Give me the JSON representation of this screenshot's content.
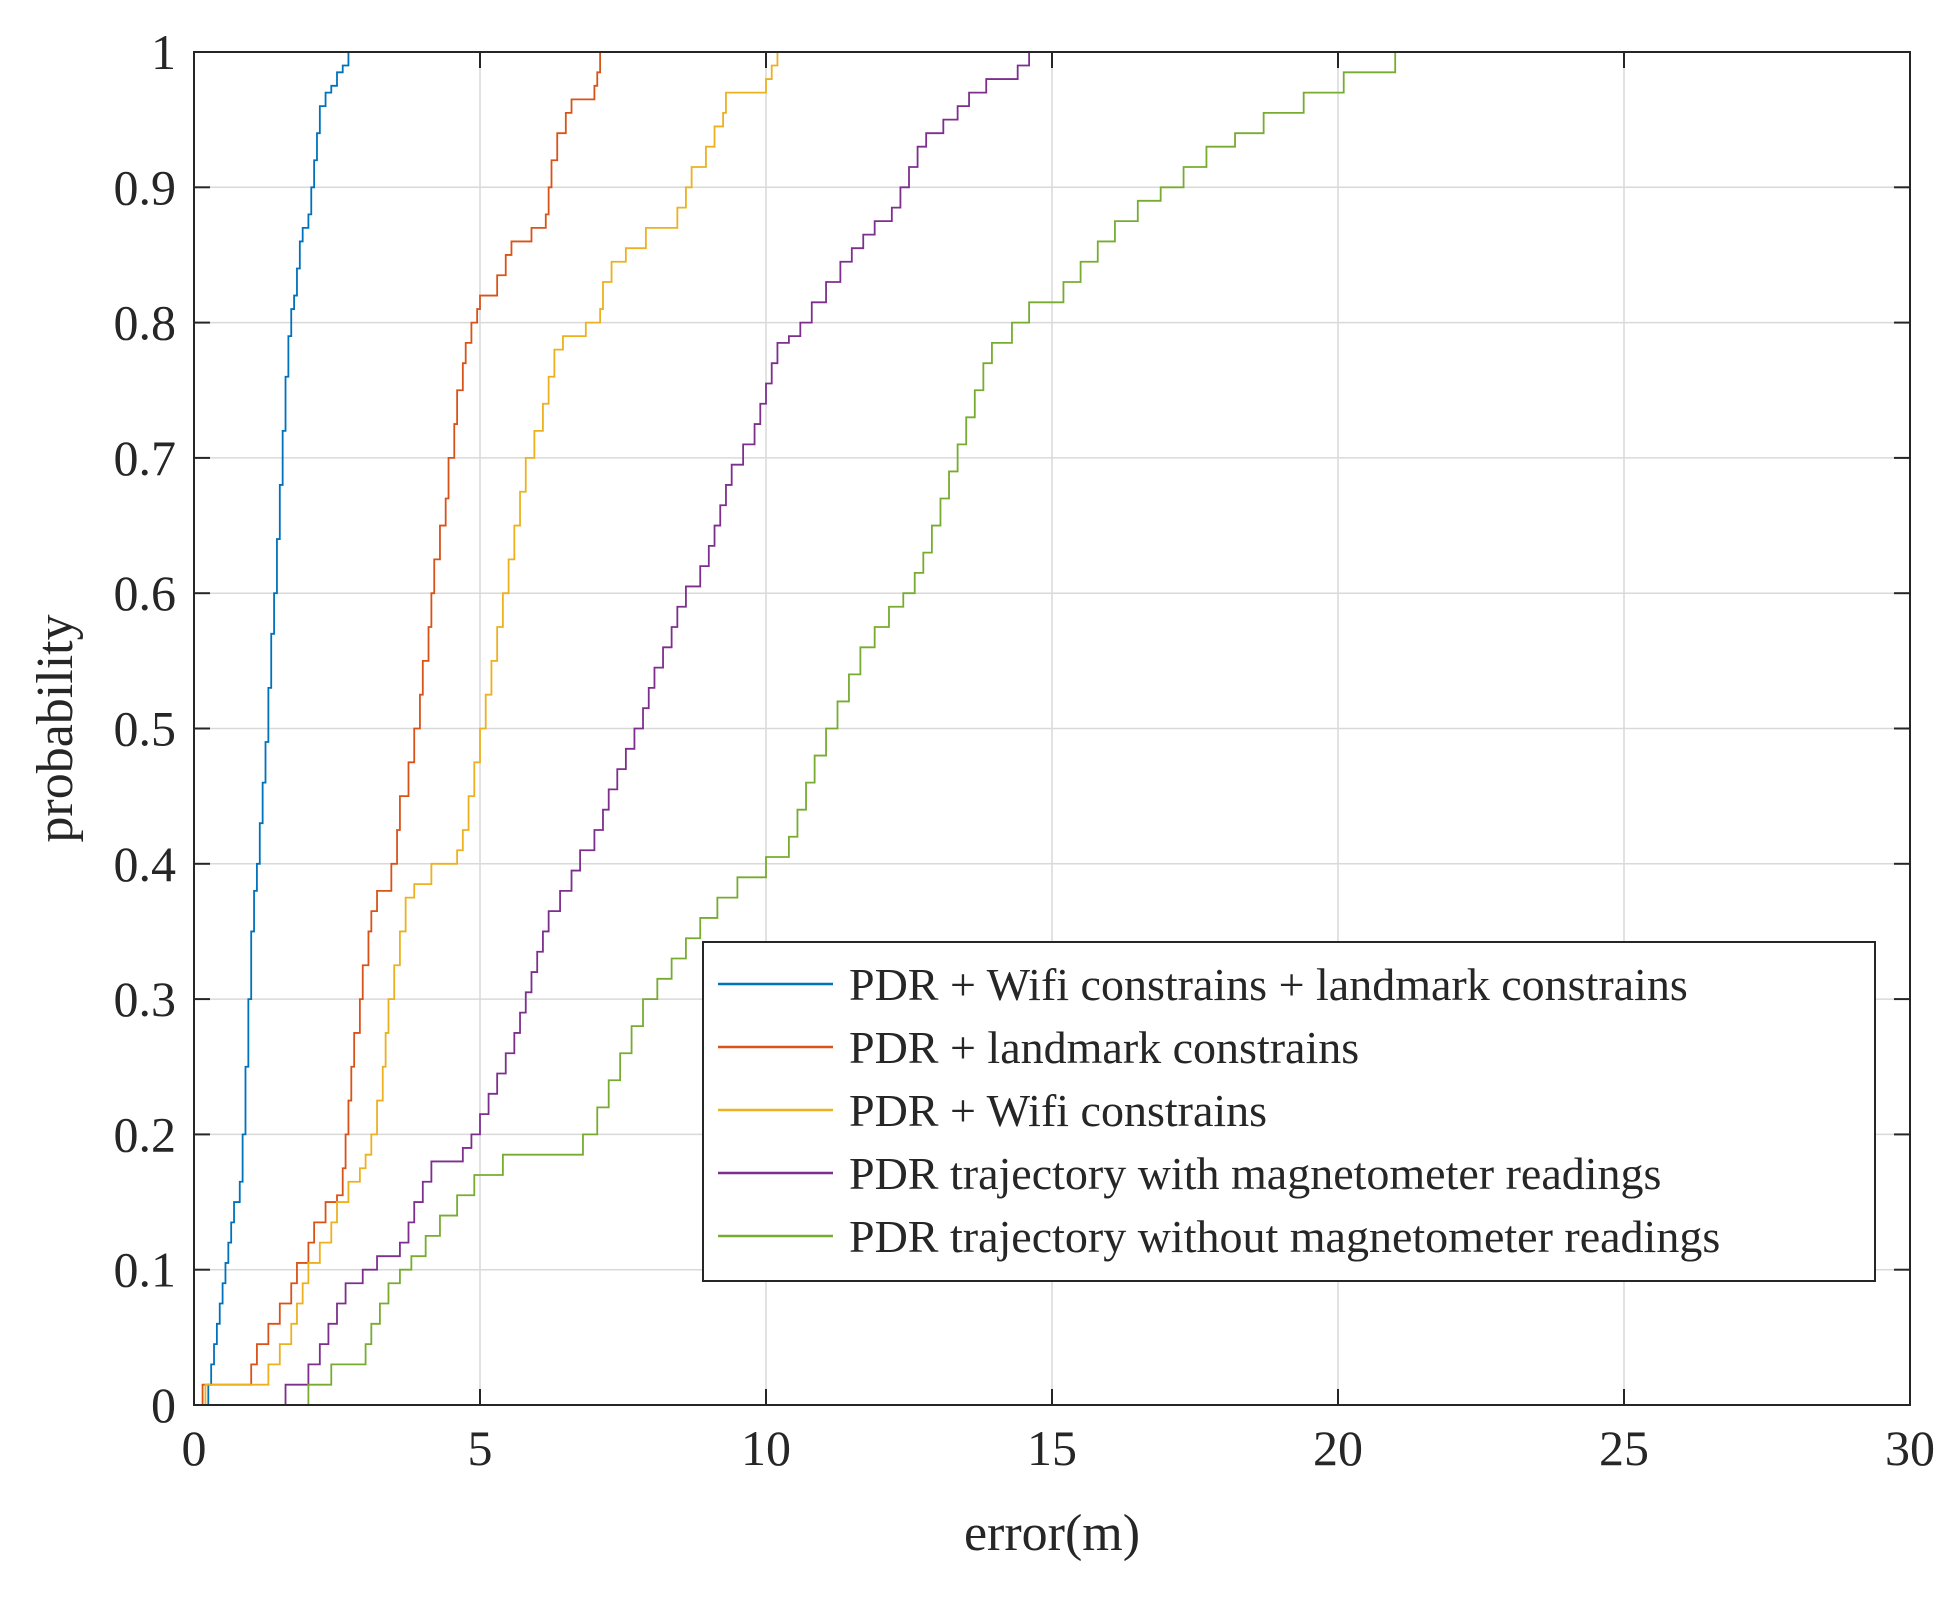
{
  "chart_data": {
    "type": "line",
    "subtype": "empirical-cdf-step",
    "title": "",
    "xlabel": "error(m)",
    "ylabel": "probability",
    "xlim": [
      0,
      30
    ],
    "ylim": [
      0,
      1
    ],
    "xticks": [
      0,
      5,
      10,
      15,
      20,
      25,
      30
    ],
    "yticks": [
      0,
      0.1,
      0.2,
      0.3,
      0.4,
      0.5,
      0.6,
      0.7,
      0.8,
      0.9,
      1
    ],
    "xtick_labels": [
      "0",
      "5",
      "10",
      "15",
      "20",
      "25",
      "30"
    ],
    "ytick_labels": [
      "0",
      "0.1",
      "0.2",
      "0.3",
      "0.4",
      "0.5",
      "0.6",
      "0.7",
      "0.8",
      "0.9",
      "1"
    ],
    "grid": true,
    "legend_position": "lower-right",
    "series": [
      {
        "name": "PDR + Wifi constrains + landmark constrains",
        "color": "#0072BD",
        "points": [
          [
            0.2,
            0
          ],
          [
            0.25,
            0.015
          ],
          [
            0.3,
            0.03
          ],
          [
            0.35,
            0.045
          ],
          [
            0.4,
            0.06
          ],
          [
            0.45,
            0.075
          ],
          [
            0.5,
            0.09
          ],
          [
            0.55,
            0.105
          ],
          [
            0.6,
            0.12
          ],
          [
            0.65,
            0.135
          ],
          [
            0.7,
            0.15
          ],
          [
            0.8,
            0.165
          ],
          [
            0.85,
            0.2
          ],
          [
            0.9,
            0.25
          ],
          [
            0.95,
            0.3
          ],
          [
            1.0,
            0.35
          ],
          [
            1.05,
            0.38
          ],
          [
            1.1,
            0.4
          ],
          [
            1.15,
            0.43
          ],
          [
            1.2,
            0.46
          ],
          [
            1.25,
            0.49
          ],
          [
            1.3,
            0.53
          ],
          [
            1.35,
            0.57
          ],
          [
            1.4,
            0.6
          ],
          [
            1.45,
            0.64
          ],
          [
            1.5,
            0.68
          ],
          [
            1.55,
            0.72
          ],
          [
            1.6,
            0.76
          ],
          [
            1.65,
            0.79
          ],
          [
            1.7,
            0.81
          ],
          [
            1.75,
            0.82
          ],
          [
            1.8,
            0.84
          ],
          [
            1.85,
            0.86
          ],
          [
            1.9,
            0.87
          ],
          [
            2.0,
            0.88
          ],
          [
            2.05,
            0.9
          ],
          [
            2.1,
            0.92
          ],
          [
            2.15,
            0.94
          ],
          [
            2.2,
            0.96
          ],
          [
            2.3,
            0.97
          ],
          [
            2.4,
            0.975
          ],
          [
            2.5,
            0.985
          ],
          [
            2.6,
            0.99
          ],
          [
            2.7,
            1.0
          ]
        ]
      },
      {
        "name": "PDR + landmark constrains",
        "color": "#D95319",
        "points": [
          [
            0.1,
            0
          ],
          [
            0.15,
            0.015
          ],
          [
            1.0,
            0.03
          ],
          [
            1.1,
            0.045
          ],
          [
            1.3,
            0.06
          ],
          [
            1.5,
            0.075
          ],
          [
            1.7,
            0.09
          ],
          [
            1.8,
            0.105
          ],
          [
            2.0,
            0.12
          ],
          [
            2.1,
            0.135
          ],
          [
            2.3,
            0.15
          ],
          [
            2.5,
            0.155
          ],
          [
            2.6,
            0.175
          ],
          [
            2.65,
            0.2
          ],
          [
            2.7,
            0.225
          ],
          [
            2.75,
            0.25
          ],
          [
            2.8,
            0.275
          ],
          [
            2.9,
            0.3
          ],
          [
            2.95,
            0.325
          ],
          [
            3.05,
            0.35
          ],
          [
            3.1,
            0.365
          ],
          [
            3.2,
            0.38
          ],
          [
            3.45,
            0.4
          ],
          [
            3.55,
            0.425
          ],
          [
            3.6,
            0.45
          ],
          [
            3.75,
            0.475
          ],
          [
            3.85,
            0.5
          ],
          [
            3.95,
            0.525
          ],
          [
            4.0,
            0.55
          ],
          [
            4.1,
            0.575
          ],
          [
            4.15,
            0.6
          ],
          [
            4.2,
            0.625
          ],
          [
            4.3,
            0.65
          ],
          [
            4.4,
            0.67
          ],
          [
            4.45,
            0.7
          ],
          [
            4.55,
            0.725
          ],
          [
            4.6,
            0.75
          ],
          [
            4.7,
            0.77
          ],
          [
            4.75,
            0.785
          ],
          [
            4.85,
            0.8
          ],
          [
            4.95,
            0.81
          ],
          [
            5.0,
            0.82
          ],
          [
            5.3,
            0.835
          ],
          [
            5.45,
            0.85
          ],
          [
            5.55,
            0.86
          ],
          [
            5.9,
            0.87
          ],
          [
            6.15,
            0.88
          ],
          [
            6.2,
            0.9
          ],
          [
            6.25,
            0.92
          ],
          [
            6.35,
            0.94
          ],
          [
            6.5,
            0.955
          ],
          [
            6.6,
            0.965
          ],
          [
            7.0,
            0.975
          ],
          [
            7.05,
            0.985
          ],
          [
            7.1,
            1.0
          ]
        ]
      },
      {
        "name": "PDR + Wifi constrains",
        "color": "#EDB120",
        "points": [
          [
            0.15,
            0
          ],
          [
            0.2,
            0.015
          ],
          [
            1.1,
            0.015
          ],
          [
            1.3,
            0.03
          ],
          [
            1.5,
            0.045
          ],
          [
            1.7,
            0.06
          ],
          [
            1.8,
            0.075
          ],
          [
            1.9,
            0.09
          ],
          [
            2.0,
            0.105
          ],
          [
            2.2,
            0.12
          ],
          [
            2.4,
            0.135
          ],
          [
            2.5,
            0.15
          ],
          [
            2.7,
            0.165
          ],
          [
            2.9,
            0.175
          ],
          [
            3.0,
            0.185
          ],
          [
            3.1,
            0.2
          ],
          [
            3.2,
            0.225
          ],
          [
            3.3,
            0.25
          ],
          [
            3.35,
            0.275
          ],
          [
            3.4,
            0.3
          ],
          [
            3.5,
            0.325
          ],
          [
            3.6,
            0.35
          ],
          [
            3.7,
            0.375
          ],
          [
            3.85,
            0.385
          ],
          [
            4.15,
            0.4
          ],
          [
            4.6,
            0.41
          ],
          [
            4.7,
            0.425
          ],
          [
            4.8,
            0.45
          ],
          [
            4.9,
            0.475
          ],
          [
            5.0,
            0.5
          ],
          [
            5.1,
            0.525
          ],
          [
            5.2,
            0.55
          ],
          [
            5.3,
            0.575
          ],
          [
            5.4,
            0.6
          ],
          [
            5.5,
            0.625
          ],
          [
            5.6,
            0.65
          ],
          [
            5.7,
            0.675
          ],
          [
            5.8,
            0.7
          ],
          [
            5.95,
            0.72
          ],
          [
            6.1,
            0.74
          ],
          [
            6.2,
            0.76
          ],
          [
            6.3,
            0.78
          ],
          [
            6.45,
            0.79
          ],
          [
            6.85,
            0.8
          ],
          [
            7.1,
            0.81
          ],
          [
            7.15,
            0.83
          ],
          [
            7.3,
            0.845
          ],
          [
            7.55,
            0.855
          ],
          [
            7.9,
            0.87
          ],
          [
            8.45,
            0.885
          ],
          [
            8.6,
            0.9
          ],
          [
            8.7,
            0.915
          ],
          [
            8.95,
            0.93
          ],
          [
            9.1,
            0.945
          ],
          [
            9.25,
            0.955
          ],
          [
            9.3,
            0.97
          ],
          [
            10.0,
            0.98
          ],
          [
            10.1,
            0.99
          ],
          [
            10.2,
            1.0
          ]
        ]
      },
      {
        "name": "PDR trajectory with magnetometer readings",
        "color": "#7E2F8E",
        "points": [
          [
            1.2,
            0
          ],
          [
            1.6,
            0.015
          ],
          [
            2.0,
            0.03
          ],
          [
            2.2,
            0.045
          ],
          [
            2.35,
            0.06
          ],
          [
            2.5,
            0.075
          ],
          [
            2.65,
            0.09
          ],
          [
            2.95,
            0.1
          ],
          [
            3.2,
            0.11
          ],
          [
            3.6,
            0.12
          ],
          [
            3.75,
            0.135
          ],
          [
            3.85,
            0.15
          ],
          [
            4.0,
            0.165
          ],
          [
            4.15,
            0.18
          ],
          [
            4.7,
            0.19
          ],
          [
            4.85,
            0.2
          ],
          [
            5.0,
            0.215
          ],
          [
            5.15,
            0.23
          ],
          [
            5.3,
            0.245
          ],
          [
            5.45,
            0.26
          ],
          [
            5.6,
            0.275
          ],
          [
            5.7,
            0.29
          ],
          [
            5.8,
            0.305
          ],
          [
            5.9,
            0.32
          ],
          [
            6.0,
            0.335
          ],
          [
            6.1,
            0.35
          ],
          [
            6.2,
            0.365
          ],
          [
            6.4,
            0.38
          ],
          [
            6.6,
            0.395
          ],
          [
            6.75,
            0.41
          ],
          [
            7.0,
            0.425
          ],
          [
            7.15,
            0.44
          ],
          [
            7.25,
            0.455
          ],
          [
            7.4,
            0.47
          ],
          [
            7.55,
            0.485
          ],
          [
            7.7,
            0.5
          ],
          [
            7.85,
            0.515
          ],
          [
            7.95,
            0.53
          ],
          [
            8.05,
            0.545
          ],
          [
            8.2,
            0.56
          ],
          [
            8.35,
            0.575
          ],
          [
            8.45,
            0.59
          ],
          [
            8.6,
            0.605
          ],
          [
            8.85,
            0.62
          ],
          [
            9.0,
            0.635
          ],
          [
            9.1,
            0.65
          ],
          [
            9.2,
            0.665
          ],
          [
            9.3,
            0.68
          ],
          [
            9.4,
            0.695
          ],
          [
            9.6,
            0.71
          ],
          [
            9.8,
            0.725
          ],
          [
            9.9,
            0.74
          ],
          [
            10.0,
            0.755
          ],
          [
            10.1,
            0.77
          ],
          [
            10.2,
            0.785
          ],
          [
            10.4,
            0.79
          ],
          [
            10.6,
            0.8
          ],
          [
            10.8,
            0.815
          ],
          [
            11.05,
            0.83
          ],
          [
            11.3,
            0.845
          ],
          [
            11.5,
            0.855
          ],
          [
            11.7,
            0.865
          ],
          [
            11.9,
            0.875
          ],
          [
            12.2,
            0.885
          ],
          [
            12.35,
            0.9
          ],
          [
            12.5,
            0.915
          ],
          [
            12.65,
            0.93
          ],
          [
            12.8,
            0.94
          ],
          [
            13.1,
            0.95
          ],
          [
            13.35,
            0.96
          ],
          [
            13.55,
            0.97
          ],
          [
            13.85,
            0.98
          ],
          [
            14.4,
            0.99
          ],
          [
            14.6,
            1.0
          ]
        ]
      },
      {
        "name": "PDR trajectory without magnetometer readings",
        "color": "#77AC30",
        "points": [
          [
            1.6,
            0
          ],
          [
            2.0,
            0.015
          ],
          [
            2.4,
            0.03
          ],
          [
            3.0,
            0.045
          ],
          [
            3.1,
            0.06
          ],
          [
            3.25,
            0.075
          ],
          [
            3.4,
            0.09
          ],
          [
            3.6,
            0.1
          ],
          [
            3.8,
            0.11
          ],
          [
            4.05,
            0.125
          ],
          [
            4.3,
            0.14
          ],
          [
            4.6,
            0.155
          ],
          [
            4.9,
            0.17
          ],
          [
            5.4,
            0.185
          ],
          [
            6.8,
            0.2
          ],
          [
            7.05,
            0.22
          ],
          [
            7.25,
            0.24
          ],
          [
            7.45,
            0.26
          ],
          [
            7.65,
            0.28
          ],
          [
            7.85,
            0.3
          ],
          [
            8.1,
            0.315
          ],
          [
            8.35,
            0.33
          ],
          [
            8.6,
            0.345
          ],
          [
            8.85,
            0.36
          ],
          [
            9.15,
            0.375
          ],
          [
            9.5,
            0.39
          ],
          [
            10.0,
            0.405
          ],
          [
            10.4,
            0.42
          ],
          [
            10.55,
            0.44
          ],
          [
            10.7,
            0.46
          ],
          [
            10.85,
            0.48
          ],
          [
            11.05,
            0.5
          ],
          [
            11.25,
            0.52
          ],
          [
            11.45,
            0.54
          ],
          [
            11.65,
            0.56
          ],
          [
            11.9,
            0.575
          ],
          [
            12.15,
            0.59
          ],
          [
            12.4,
            0.6
          ],
          [
            12.6,
            0.615
          ],
          [
            12.75,
            0.63
          ],
          [
            12.9,
            0.65
          ],
          [
            13.05,
            0.67
          ],
          [
            13.2,
            0.69
          ],
          [
            13.35,
            0.71
          ],
          [
            13.5,
            0.73
          ],
          [
            13.65,
            0.75
          ],
          [
            13.8,
            0.77
          ],
          [
            13.95,
            0.785
          ],
          [
            14.3,
            0.8
          ],
          [
            14.6,
            0.815
          ],
          [
            15.2,
            0.83
          ],
          [
            15.5,
            0.845
          ],
          [
            15.8,
            0.86
          ],
          [
            16.1,
            0.875
          ],
          [
            16.5,
            0.89
          ],
          [
            16.9,
            0.9
          ],
          [
            17.3,
            0.915
          ],
          [
            17.7,
            0.93
          ],
          [
            18.2,
            0.94
          ],
          [
            18.7,
            0.955
          ],
          [
            19.4,
            0.97
          ],
          [
            20.1,
            0.985
          ],
          [
            21.0,
            1.0
          ]
        ]
      }
    ]
  }
}
